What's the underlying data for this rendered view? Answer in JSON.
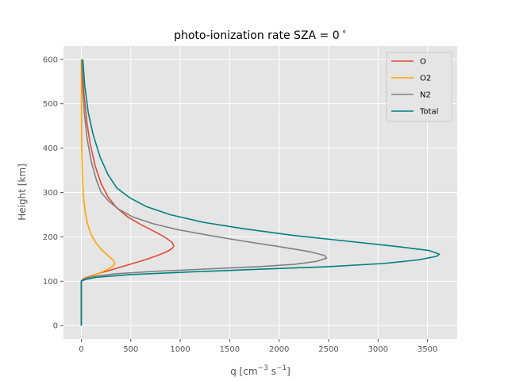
{
  "chart_data": {
    "type": "line",
    "title_main": "photo-ionization rate SZA = 0",
    "title_degree": "∘",
    "xlabel_base": "q [cm",
    "xlabel_exp1": "−3",
    "xlabel_mid": " s",
    "xlabel_exp2": "−1",
    "xlabel_end": "]",
    "ylabel": "Height [km]",
    "xlim": [
      -180,
      3800
    ],
    "ylim": [
      -30,
      630
    ],
    "xticks": [
      0,
      500,
      1000,
      1500,
      2000,
      2500,
      3000,
      3500
    ],
    "yticks": [
      0,
      100,
      200,
      300,
      400,
      500,
      600
    ],
    "grid": true,
    "legend_position": "top-right",
    "series": [
      {
        "name": "O",
        "color": "#E24A33",
        "points": [
          [
            0,
            0
          ],
          [
            0,
            100
          ],
          [
            10,
            104
          ],
          [
            45,
            108
          ],
          [
            100,
            112
          ],
          [
            180,
            118
          ],
          [
            280,
            124
          ],
          [
            400,
            132
          ],
          [
            520,
            140
          ],
          [
            640,
            148
          ],
          [
            760,
            157
          ],
          [
            860,
            166
          ],
          [
            920,
            174
          ],
          [
            935,
            180
          ],
          [
            915,
            188
          ],
          [
            840,
            200
          ],
          [
            730,
            213
          ],
          [
            600,
            228
          ],
          [
            470,
            245
          ],
          [
            360,
            265
          ],
          [
            270,
            290
          ],
          [
            200,
            320
          ],
          [
            140,
            360
          ],
          [
            90,
            410
          ],
          [
            55,
            460
          ],
          [
            28,
            520
          ],
          [
            12,
            570
          ],
          [
            5,
            600
          ]
        ]
      },
      {
        "name": "O2",
        "color": "#FFA500",
        "points": [
          [
            0,
            0
          ],
          [
            0,
            100
          ],
          [
            20,
            104
          ],
          [
            60,
            108
          ],
          [
            120,
            113
          ],
          [
            200,
            120
          ],
          [
            270,
            127
          ],
          [
            320,
            134
          ],
          [
            340,
            141
          ],
          [
            320,
            148
          ],
          [
            270,
            158
          ],
          [
            210,
            170
          ],
          [
            150,
            186
          ],
          [
            100,
            205
          ],
          [
            65,
            228
          ],
          [
            40,
            255
          ],
          [
            22,
            290
          ],
          [
            10,
            340
          ],
          [
            4,
            400
          ],
          [
            1,
            500
          ],
          [
            0,
            600
          ]
        ]
      },
      {
        "name": "N2",
        "color": "#808080",
        "points": [
          [
            0,
            0
          ],
          [
            0,
            100
          ],
          [
            20,
            104
          ],
          [
            100,
            110
          ],
          [
            350,
            117
          ],
          [
            800,
            123
          ],
          [
            1300,
            128
          ],
          [
            1800,
            133
          ],
          [
            2150,
            138
          ],
          [
            2380,
            145
          ],
          [
            2480,
            152
          ],
          [
            2460,
            158
          ],
          [
            2300,
            167
          ],
          [
            2000,
            178
          ],
          [
            1650,
            190
          ],
          [
            1300,
            203
          ],
          [
            980,
            216
          ],
          [
            720,
            230
          ],
          [
            520,
            245
          ],
          [
            380,
            262
          ],
          [
            280,
            280
          ],
          [
            200,
            300
          ],
          [
            150,
            330
          ],
          [
            100,
            370
          ],
          [
            60,
            420
          ],
          [
            30,
            480
          ],
          [
            12,
            540
          ],
          [
            5,
            600
          ]
        ]
      },
      {
        "name": "Total",
        "color": "#008080",
        "points": [
          [
            0,
            0
          ],
          [
            0,
            100
          ],
          [
            40,
            104
          ],
          [
            150,
            109
          ],
          [
            500,
            115
          ],
          [
            1100,
            121
          ],
          [
            1800,
            127
          ],
          [
            2500,
            133
          ],
          [
            3050,
            140
          ],
          [
            3400,
            148
          ],
          [
            3590,
            156
          ],
          [
            3620,
            161
          ],
          [
            3520,
            169
          ],
          [
            3200,
            178
          ],
          [
            2700,
            190
          ],
          [
            2150,
            203
          ],
          [
            1650,
            218
          ],
          [
            1230,
            233
          ],
          [
            900,
            250
          ],
          [
            660,
            268
          ],
          [
            490,
            288
          ],
          [
            360,
            310
          ],
          [
            270,
            340
          ],
          [
            190,
            380
          ],
          [
            120,
            430
          ],
          [
            70,
            480
          ],
          [
            35,
            540
          ],
          [
            15,
            600
          ]
        ]
      }
    ]
  }
}
